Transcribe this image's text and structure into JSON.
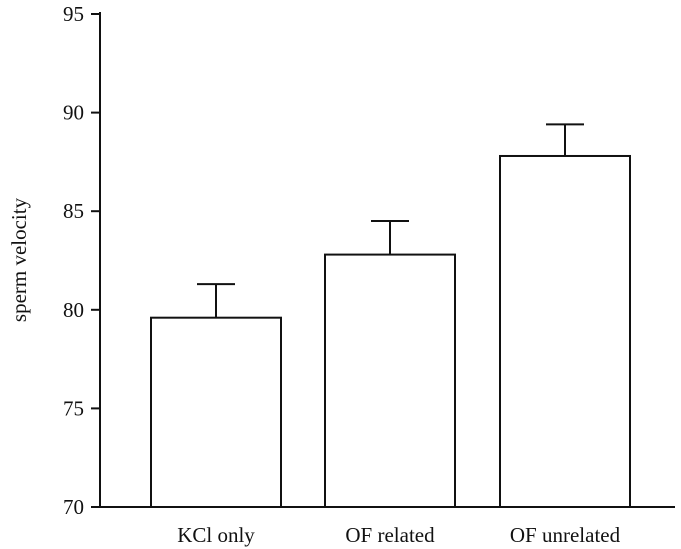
{
  "chart_data": {
    "type": "bar",
    "title": "",
    "xlabel": "",
    "ylabel": "sperm velocity",
    "ylim": [
      70,
      95
    ],
    "yticks": [
      70,
      75,
      80,
      85,
      90,
      95
    ],
    "grid": false,
    "categories": [
      "KCl only",
      "OF related",
      "OF unrelated"
    ],
    "values": [
      79.6,
      82.8,
      87.8
    ],
    "error_upper": [
      81.3,
      84.5,
      89.4
    ]
  }
}
